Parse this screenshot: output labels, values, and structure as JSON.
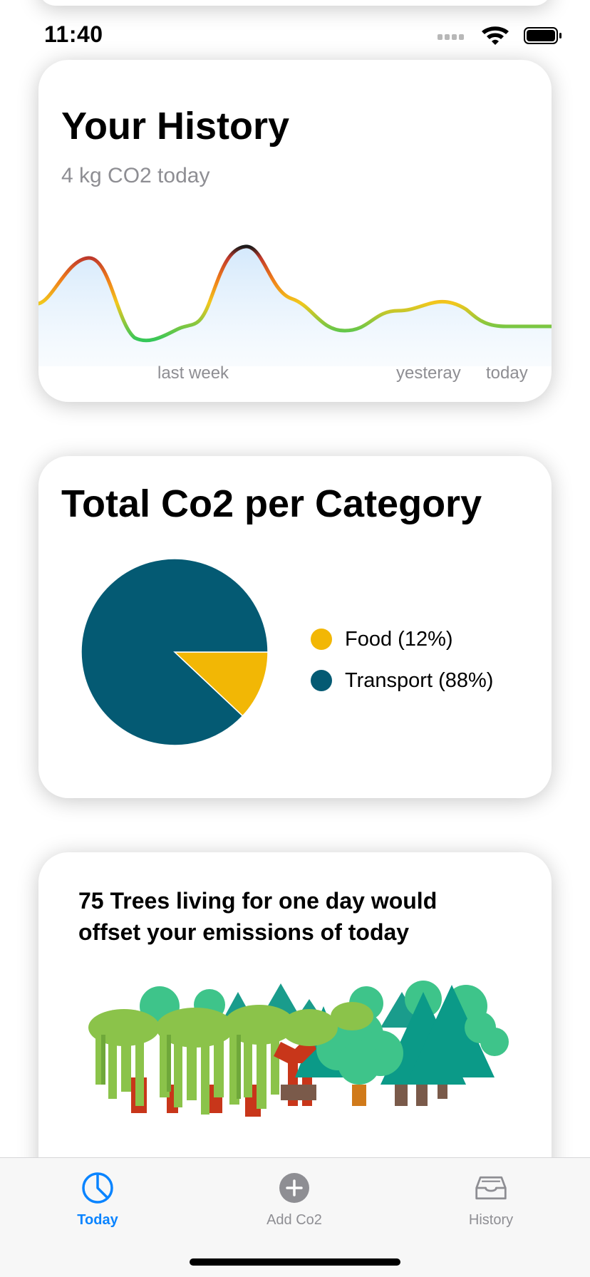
{
  "status_bar": {
    "time": "11:40"
  },
  "history_card": {
    "title": "Your History",
    "subtitle": "4 kg CO2 today",
    "x_labels": [
      "last week",
      "yesteray",
      "today"
    ]
  },
  "category_card": {
    "title": "Total Co2 per Category",
    "chart_data": {
      "type": "pie",
      "slices": [
        {
          "name": "Food",
          "value": 12,
          "color": "#f2b705"
        },
        {
          "name": "Transport",
          "value": 88,
          "color": "#045a73"
        }
      ]
    },
    "legend": [
      {
        "label": "Food (12%)",
        "color": "#f2b705"
      },
      {
        "label": "Transport (88%)",
        "color": "#045a73"
      }
    ]
  },
  "trees_card": {
    "text": "75 Trees living for one day would offset your emissions of today"
  },
  "tab_bar": {
    "tabs": [
      {
        "label": "Today",
        "icon": "pie-chart-icon",
        "active": true
      },
      {
        "label": "Add Co2",
        "icon": "plus-circle-icon",
        "active": false
      },
      {
        "label": "History",
        "icon": "tray-icon",
        "active": false
      }
    ],
    "active_color": "#0a84ff",
    "inactive_color": "#8e8e93"
  }
}
